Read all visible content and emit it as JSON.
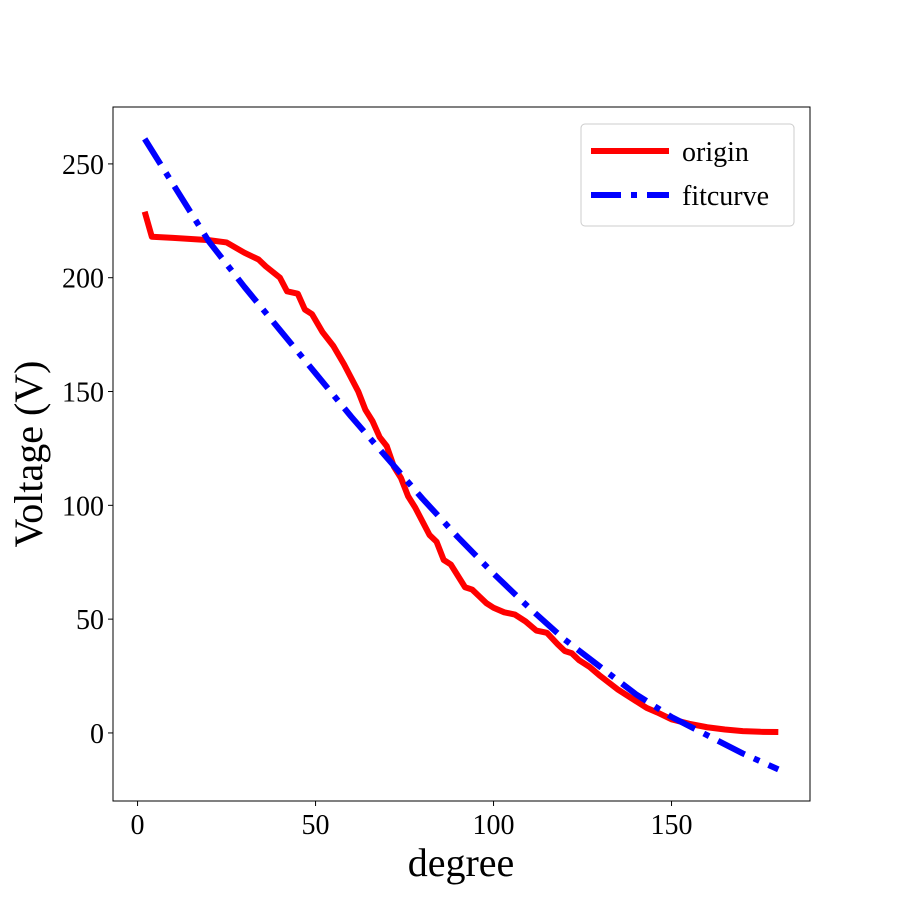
{
  "chart_data": {
    "type": "line",
    "x_label": "degree",
    "y_label": "Voltage (V)",
    "xlim": [
      -6.9,
      188.9
    ],
    "ylim": [
      -29.9,
      275
    ],
    "xticks": [
      0,
      50,
      100,
      150
    ],
    "yticks": [
      0,
      50,
      100,
      150,
      200,
      250
    ],
    "legend": "upper right",
    "series": [
      {
        "name": "origin",
        "color": "#ff0000",
        "style": "solid",
        "x": [
          2,
          4,
          10,
          20,
          25,
          30,
          34,
          36,
          40,
          42,
          45,
          47,
          49,
          52,
          55,
          58,
          60,
          62,
          64,
          66,
          68,
          70,
          72,
          74,
          76,
          78,
          80,
          82,
          84,
          86,
          88,
          90,
          92,
          94,
          96,
          98,
          100,
          103,
          106,
          109,
          112,
          115,
          118,
          120,
          122,
          124,
          127,
          130,
          135,
          140,
          143,
          146,
          150,
          155,
          160,
          165,
          170,
          175,
          180
        ],
        "values": [
          229,
          218,
          217.5,
          216.5,
          215.5,
          211,
          208,
          205,
          200,
          194,
          193,
          186,
          184,
          176,
          170,
          162,
          156,
          150,
          142,
          137,
          130,
          126,
          117,
          112,
          104,
          99,
          93,
          87,
          84,
          76,
          74,
          69,
          64,
          63,
          60,
          57,
          55,
          53,
          52,
          49,
          45,
          44,
          39,
          36,
          35,
          32,
          29,
          25,
          19,
          14,
          11,
          9,
          6,
          4,
          2.5,
          1.5,
          0.8,
          0.5,
          0.4
        ]
      },
      {
        "name": "fitcurve",
        "color": "#0000ff",
        "style": "dashdot",
        "x": [
          2,
          10,
          20,
          30,
          40,
          50,
          60,
          70,
          80,
          90,
          100,
          110,
          120,
          130,
          140,
          150,
          160,
          170,
          180
        ],
        "values": [
          261,
          241,
          216,
          196,
          177,
          158,
          139,
          121,
          103,
          86,
          70,
          55,
          41,
          29,
          17,
          7,
          -1,
          -9,
          -16
        ]
      }
    ]
  }
}
